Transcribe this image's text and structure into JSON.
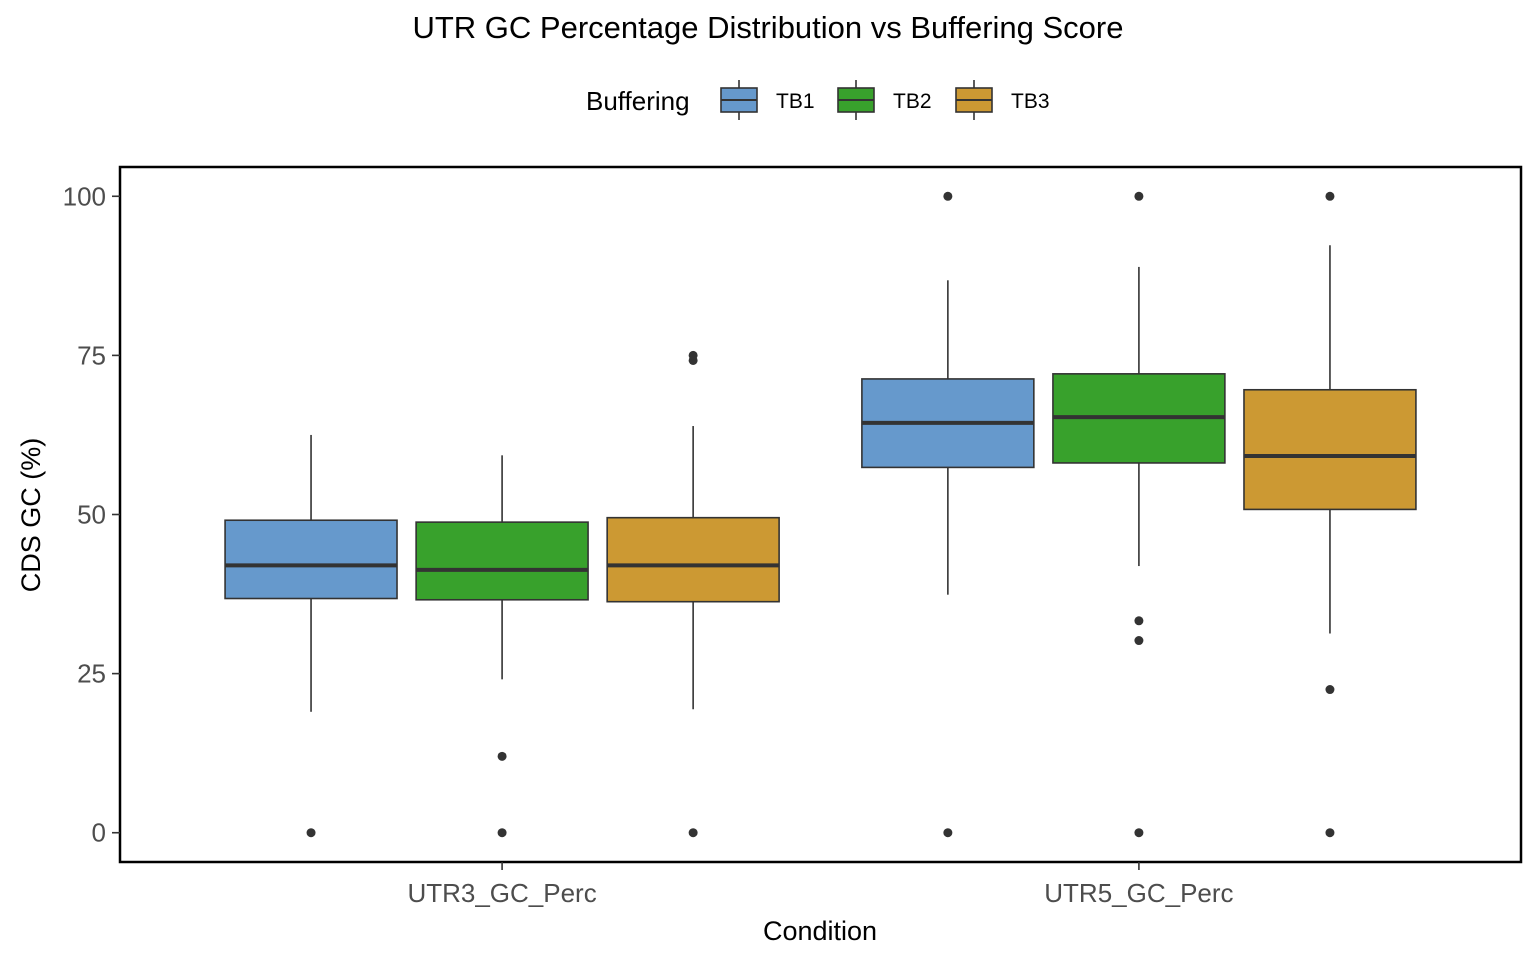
{
  "chart_data": {
    "type": "boxplot",
    "title": "UTR GC Percentage Distribution vs Buffering Score",
    "xlabel": "Condition",
    "ylabel": "CDS GC (%)",
    "ylim": [
      -4.6,
      104.6
    ],
    "yticks": [
      0,
      25,
      50,
      75,
      100
    ],
    "categories": [
      "UTR3_GC_Perc",
      "UTR5_GC_Perc"
    ],
    "legend": {
      "title": "Buffering",
      "position": "top"
    },
    "grid": false,
    "series": [
      {
        "name": "TB1",
        "color": "#6699CC",
        "boxes": [
          {
            "whisker_low": 19.0,
            "q1": 36.8,
            "median": 42.0,
            "q3": 49.1,
            "whisker_high": 62.5,
            "outliers": [
              0
            ]
          },
          {
            "whisker_low": 37.4,
            "q1": 57.4,
            "median": 64.4,
            "q3": 71.3,
            "whisker_high": 86.8,
            "outliers": [
              0,
              100
            ]
          }
        ]
      },
      {
        "name": "TB2",
        "color": "#38A12C",
        "boxes": [
          {
            "whisker_low": 24.1,
            "q1": 36.6,
            "median": 41.3,
            "q3": 48.8,
            "whisker_high": 59.3,
            "outliers": [
              0,
              12
            ]
          },
          {
            "whisker_low": 41.9,
            "q1": 58.1,
            "median": 65.3,
            "q3": 72.1,
            "whisker_high": 88.9,
            "outliers": [
              0,
              30.2,
              33.3,
              100
            ]
          }
        ]
      },
      {
        "name": "TB3",
        "color": "#CC9933",
        "boxes": [
          {
            "whisker_low": 19.4,
            "q1": 36.3,
            "median": 42.0,
            "q3": 49.5,
            "whisker_high": 63.9,
            "outliers": [
              0,
              74.2,
              75
            ]
          },
          {
            "whisker_low": 31.3,
            "q1": 50.8,
            "median": 59.2,
            "q3": 69.6,
            "whisker_high": 92.3,
            "outliers": [
              0,
              22.5,
              100
            ]
          }
        ]
      }
    ]
  }
}
